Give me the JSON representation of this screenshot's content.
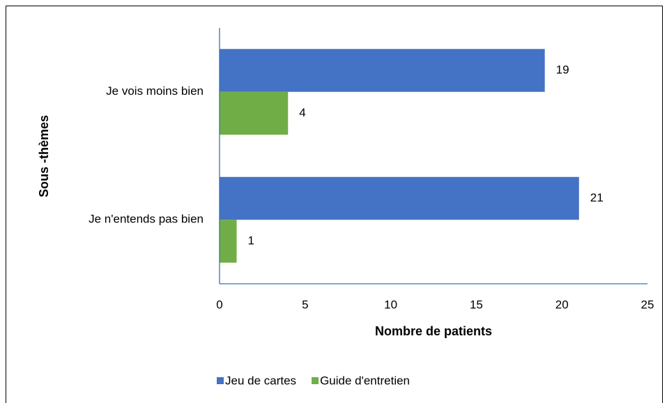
{
  "chart_data": {
    "type": "bar",
    "orientation": "horizontal",
    "x_label": "Nombre de patients",
    "y_label": "Sous -thèmes",
    "categories": [
      "Je vois moins bien",
      "Je n'entends pas bien"
    ],
    "series": [
      {
        "name": "Jeu de cartes",
        "color": "#4472c4",
        "values": [
          19,
          21
        ]
      },
      {
        "name": "Guide d'entretien",
        "color": "#70ad47",
        "values": [
          4,
          1
        ]
      }
    ],
    "xlim": [
      0,
      25
    ],
    "xticks": [
      0,
      5,
      10,
      15,
      20,
      25
    ],
    "grid": false,
    "legend": "bottom"
  }
}
